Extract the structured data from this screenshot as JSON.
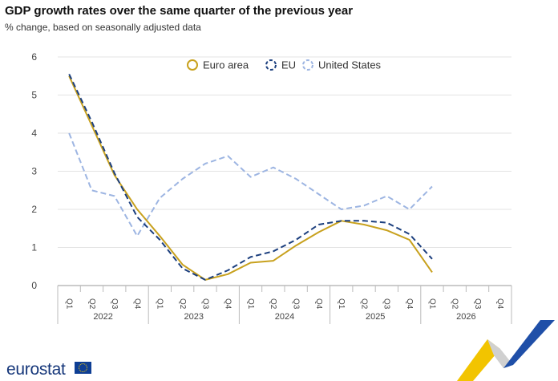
{
  "header": {
    "title": "GDP growth rates over the same quarter of the previous year",
    "subtitle": "% change, based on seasonally adjusted data"
  },
  "branding": {
    "logo_text": "eurostat",
    "flag_icon": "eu-flag-icon"
  },
  "colors": {
    "euro_area": "#c8a11e",
    "eu": "#1c3f7e",
    "united_states": "#9db5e2",
    "grid": "#e3e3e3",
    "axis": "#999999"
  },
  "chart_data": {
    "type": "line",
    "title": "GDP growth rates over the same quarter of the previous year",
    "subtitle": "% change, based on seasonally adjusted data",
    "ylim": [
      0,
      6
    ],
    "yticks": [
      0,
      1,
      2,
      3,
      4,
      5,
      6
    ],
    "grid": true,
    "legend_position": "top",
    "x": [
      "Q1",
      "Q2",
      "Q3",
      "Q4",
      "Q1",
      "Q2",
      "Q3",
      "Q4",
      "Q1",
      "Q2",
      "Q3",
      "Q4",
      "Q1",
      "Q2",
      "Q3",
      "Q4",
      "Q1",
      "Q2",
      "Q3",
      "Q4"
    ],
    "years": [
      "2022",
      "2023",
      "2024",
      "2025",
      "2026"
    ],
    "series": [
      {
        "name": "Euro area",
        "style": "solid",
        "values": [
          5.5,
          4.2,
          2.9,
          2.0,
          1.3,
          0.55,
          0.15,
          0.3,
          0.6,
          0.65,
          1.05,
          1.4,
          1.7,
          1.6,
          1.45,
          1.2,
          0.35,
          null,
          null,
          null
        ]
      },
      {
        "name": "EU",
        "style": "dashed",
        "values": [
          5.55,
          4.3,
          2.95,
          1.8,
          1.2,
          0.45,
          0.15,
          0.4,
          0.75,
          0.9,
          1.2,
          1.6,
          1.7,
          1.7,
          1.65,
          1.35,
          0.7,
          null,
          null,
          null
        ]
      },
      {
        "name": "United States",
        "style": "dashed",
        "values": [
          4.0,
          2.5,
          2.35,
          1.3,
          2.3,
          2.8,
          3.2,
          3.4,
          2.85,
          3.1,
          2.8,
          2.4,
          2.0,
          2.1,
          2.35,
          2.0,
          2.6,
          null,
          null,
          null
        ]
      }
    ]
  }
}
